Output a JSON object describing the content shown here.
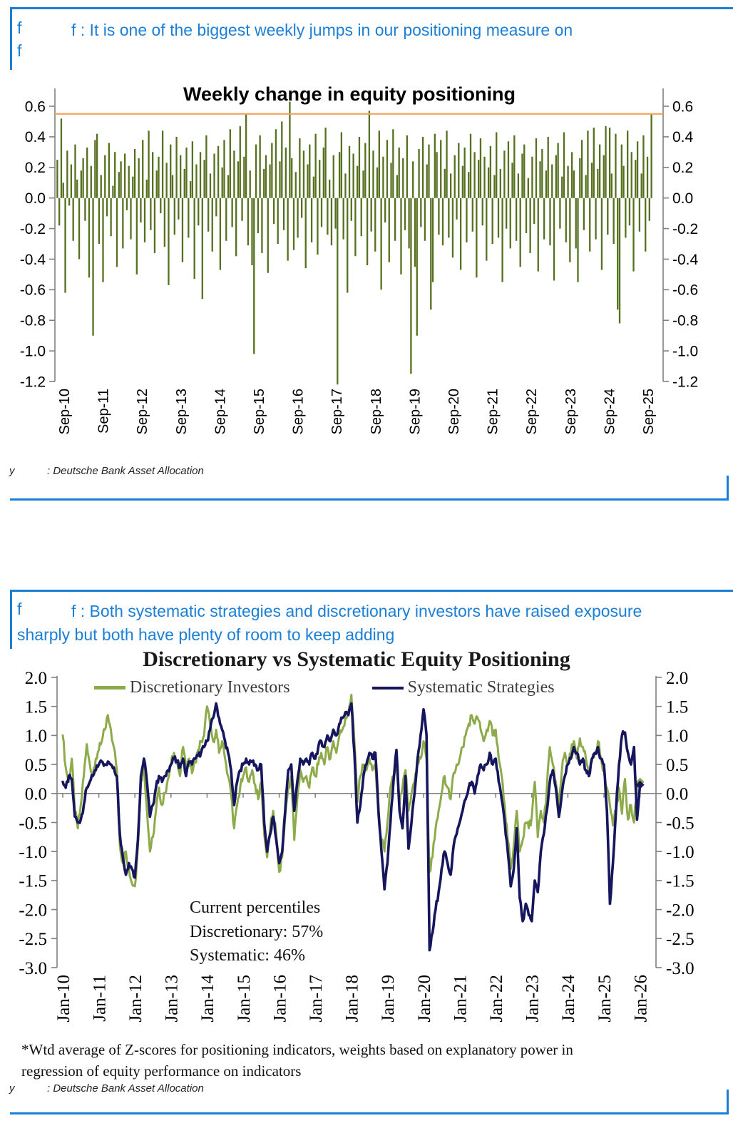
{
  "colors": {
    "accent_blue": "#1b7fd6",
    "bar_olive": "#55701f",
    "discretionary_green": "#8dab4a",
    "systematic_navy": "#16165e",
    "reference_orange": "#f2a45c",
    "axis_grey": "#808080"
  },
  "panel1": {
    "marker1": "f",
    "marker2": "f",
    "headline": "f : It is one of the biggest weekly jumps in our positioning measure on",
    "source_marker": "y",
    "source_text": ": Deutsche Bank Asset Allocation"
  },
  "panel2": {
    "marker": "f",
    "headline": "f : Both systematic strategies and discretionary investors have raised exposure sharply but both have plenty of room to keep adding",
    "footnote_line1": "*Wtd average of Z-scores for positioning indicators, weights based on explanatory power in",
    "footnote_line2": "regression of equity performance on indicators",
    "source_marker": "y",
    "source_text": ": Deutsche Bank Asset Allocation"
  },
  "chart_data": [
    {
      "type": "bar",
      "title": "Weekly change in equity positioning",
      "xlabel": "",
      "ylabel": "",
      "ylim": [
        -1.2,
        0.65
      ],
      "y_ticks": [
        "0.6",
        "0.4",
        "0.2",
        "0.0",
        "-0.2",
        "-0.4",
        "-0.6",
        "-0.8",
        "-1.0",
        "-1.2"
      ],
      "x_labels": [
        "Sep-10",
        "Sep-11",
        "Sep-12",
        "Sep-13",
        "Sep-14",
        "Sep-15",
        "Sep-16",
        "Sep-17",
        "Sep-18",
        "Sep-19",
        "Sep-20",
        "Sep-21",
        "Sep-22",
        "Sep-23",
        "Sep-24",
        "Sep-25"
      ],
      "grid": false,
      "bar_color": "#55701f",
      "reference_line": {
        "value": 0.55,
        "color": "#f2a45c",
        "note": "latest weekly change marker"
      },
      "values": [
        0.25,
        -0.18,
        0.52,
        0.1,
        -0.62,
        0.31,
        -0.05,
        0.22,
        -0.28,
        0.35,
        0.12,
        -0.4,
        0.18,
        0.26,
        -0.15,
        0.33,
        -0.52,
        0.21,
        -0.9,
        0.38,
        0.42,
        -0.3,
        0.15,
        -0.55,
        0.28,
        -0.12,
        0.36,
        -0.25,
        0.08,
        0.3,
        -0.45,
        0.17,
        0.24,
        -0.33,
        0.29,
        -0.08,
        0.21,
        -0.27,
        0.14,
        0.32,
        -0.5,
        0.26,
        -0.16,
        0.38,
        -0.29,
        0.12,
        0.44,
        -0.21,
        0.3,
        -0.36,
        0.18,
        0.27,
        -0.1,
        0.44,
        -0.32,
        0.23,
        -0.57,
        0.35,
        0.15,
        -0.24,
        0.4,
        -0.14,
        0.28,
        -0.42,
        0.19,
        0.33,
        -0.26,
        0.11,
        0.37,
        -0.53,
        0.22,
        -0.18,
        0.3,
        -0.66,
        0.25,
        0.41,
        -0.22,
        0.16,
        -0.35,
        0.29,
        -0.12,
        0.34,
        -0.47,
        0.2,
        0.38,
        -0.28,
        0.15,
        0.45,
        -0.19,
        0.31,
        -0.38,
        0.24,
        0.47,
        -0.15,
        0.27,
        0.55,
        -0.31,
        0.18,
        -0.44,
        -1.02,
        0.35,
        -0.23,
        0.41,
        -0.36,
        0.19,
        0.28,
        -0.49,
        0.22,
        0.36,
        -0.17,
        0.45,
        -0.3,
        0.24,
        0.5,
        -0.21,
        0.33,
        -0.41,
        0.63,
        0.26,
        -0.34,
        0.17,
        -0.26,
        0.39,
        -0.13,
        0.31,
        -0.46,
        0.22,
        0.35,
        -0.29,
        0.14,
        0.42,
        -0.37,
        0.25,
        -0.19,
        0.33,
        0.46,
        -0.24,
        0.12,
        -0.31,
        0.28,
        -0.2,
        -1.22,
        0.3,
        0.43,
        -0.27,
        0.16,
        -0.62,
        0.34,
        -0.15,
        0.29,
        -0.38,
        0.21,
        0.4,
        -0.25,
        0.18,
        0.36,
        -0.44,
        0.57,
        -0.22,
        0.31,
        -0.35,
        0.2,
        0.44,
        -0.6,
        0.27,
        -0.16,
        0.38,
        -0.42,
        0.23,
        0.45,
        -0.28,
        0.15,
        0.33,
        -0.5,
        0.26,
        -0.21,
        0.41,
        -0.33,
        -1.15,
        0.24,
        -0.45,
        -0.9,
        0.32,
        -0.19,
        0.4,
        -0.28,
        0.22,
        0.35,
        -0.73,
        -0.55,
        0.42,
        0.3,
        -0.24,
        0.38,
        -0.31,
        0.19,
        0.44,
        -0.26,
        0.16,
        -0.39,
        0.28,
        -0.14,
        0.36,
        -0.47,
        0.21,
        0.33,
        -0.29,
        0.17,
        0.42,
        -0.22,
        0.3,
        -0.52,
        0.25,
        0.39,
        -0.18,
        0.27,
        -0.41,
        0.2,
        0.34,
        -0.3,
        0.15,
        0.43,
        -0.26,
        0.19,
        -0.55,
        0.31,
        -0.2,
        0.37,
        -0.33,
        0.23,
        0.41,
        -0.28,
        0.16,
        -0.45,
        0.29,
        0.35,
        -0.23,
        0.13,
        -0.36,
        0.27,
        -0.17,
        0.39,
        -0.48,
        0.24,
        0.32,
        -0.27,
        0.18,
        0.4,
        -0.31,
        0.22,
        -0.54,
        0.28,
        0.36,
        -0.2,
        0.14,
        0.43,
        -0.29,
        0.21,
        -0.42,
        0.3,
        0.18,
        -0.33,
        -0.55,
        0.26,
        0.38,
        -0.21,
        0.15,
        0.44,
        -0.35,
        0.23,
        0.46,
        -0.27,
        0.19,
        0.35,
        -0.47,
        0.28,
        0.47,
        -0.24,
        0.46,
        0.16,
        -0.3,
        0.42,
        -0.73,
        -0.82,
        0.35,
        0.21,
        -0.26,
        0.44,
        -0.18,
        0.3,
        -0.48,
        0.25,
        0.37,
        -0.22,
        0.16,
        0.41,
        -0.35,
        0.27,
        -0.15,
        0.55
      ]
    },
    {
      "type": "line",
      "title": "Discretionary  vs Systematic Equity Positioning",
      "xlabel": "",
      "ylabel": "",
      "ylim": [
        -3.0,
        2.0
      ],
      "y_ticks": [
        "2.0",
        "1.5",
        "1.0",
        "0.5",
        "0.0",
        "-0.5",
        "-1.0",
        "-1.5",
        "-2.0",
        "-2.5",
        "-3.0"
      ],
      "x_labels": [
        "Jan-10",
        "Jan-11",
        "Jan-12",
        "Jan-13",
        "Jan-14",
        "Jan-15",
        "Jan-16",
        "Jan-17",
        "Jan-18",
        "Jan-19",
        "Jan-20",
        "Jan-21",
        "Jan-22",
        "Jan-23",
        "Jan-24",
        "Jan-25",
        "Jan-26"
      ],
      "grid": false,
      "legend_position": "top",
      "annotation": {
        "lines": [
          "Current percentiles",
          "Discretionary: 57%",
          "Systematic: 46%"
        ]
      },
      "x_frequency": "monthly from Jan-2010 to Jan-2026",
      "series": [
        {
          "name": "Discretionary Investors",
          "color": "#8dab4a",
          "values": [
            1.0,
            0.45,
            0.2,
            0.6,
            -0.3,
            -0.6,
            -0.2,
            0.3,
            0.85,
            0.5,
            0.3,
            0.6,
            0.75,
            0.9,
            1.1,
            1.35,
            1.1,
            0.8,
            0.4,
            -0.9,
            -1.2,
            -1.0,
            -1.3,
            -1.55,
            -1.6,
            -0.9,
            0.2,
            0.5,
            -0.3,
            -1.0,
            -0.75,
            -0.3,
            0.1,
            -0.2,
            0.0,
            0.25,
            0.5,
            0.7,
            0.55,
            0.3,
            0.8,
            0.4,
            0.6,
            0.35,
            0.55,
            0.75,
            0.9,
            1.0,
            1.5,
            1.2,
            0.9,
            1.1,
            0.7,
            0.9,
            0.6,
            0.3,
            0.0,
            -0.6,
            -0.2,
            0.1,
            0.3,
            0.45,
            0.2,
            0.4,
            0.15,
            -0.1,
            0.2,
            -0.7,
            -1.1,
            -0.6,
            -0.3,
            -0.7,
            -1.35,
            -1.1,
            -0.4,
            0.1,
            0.3,
            -0.8,
            -0.1,
            0.4,
            0.2,
            0.3,
            0.1,
            0.45,
            0.3,
            0.5,
            0.7,
            0.5,
            0.8,
            0.6,
            0.9,
            0.7,
            1.0,
            1.1,
            1.3,
            1.4,
            1.7,
            0.9,
            -0.15,
            0.3,
            0.5,
            0.4,
            0.6,
            0.4,
            0.5,
            -0.4,
            -0.8,
            -1.0,
            -0.5,
            0.1,
            0.3,
            0.5,
            -0.2,
            0.1,
            0.4,
            -0.3,
            0.0,
            0.2,
            0.5,
            0.6,
            0.9,
            0.6,
            -1.35,
            -1.1,
            -0.6,
            -0.3,
            0.0,
            0.3,
            0.1,
            -0.1,
            0.35,
            0.5,
            0.6,
            0.8,
            1.0,
            1.2,
            1.35,
            1.2,
            1.3,
            1.1,
            0.9,
            1.1,
            1.25,
            1.0,
            1.1,
            0.6,
            0.3,
            -0.2,
            -0.8,
            -1.3,
            -0.9,
            -0.3,
            -1.0,
            -0.8,
            -0.5,
            -0.6,
            -0.4,
            0.2,
            -0.75,
            -0.3,
            -0.5,
            0.1,
            0.8,
            0.5,
            0.2,
            -0.3,
            0.4,
            0.7,
            0.5,
            0.7,
            0.9,
            0.6,
            0.95,
            0.8,
            0.6,
            0.3,
            0.55,
            0.7,
            0.9,
            0.6,
            0.4,
            0.1,
            -0.2,
            -0.55,
            -0.3,
            0.1,
            -0.35,
            0.25,
            -0.45,
            -0.2,
            -0.5,
            0.1,
            0.2
          ]
        },
        {
          "name": "Systematic Strategies",
          "color": "#16165e",
          "values": [
            0.2,
            0.1,
            0.3,
            0.25,
            -0.4,
            -0.5,
            -0.45,
            -0.2,
            0.1,
            0.2,
            0.3,
            0.4,
            0.5,
            0.55,
            0.5,
            0.55,
            0.5,
            0.45,
            0.3,
            -0.7,
            -1.1,
            -1.4,
            -1.2,
            -1.3,
            -1.45,
            -0.8,
            0.3,
            0.6,
            0.2,
            -0.4,
            -0.2,
            0.1,
            0.3,
            0.2,
            0.3,
            0.4,
            0.5,
            0.6,
            0.55,
            0.45,
            0.6,
            0.3,
            0.55,
            0.5,
            0.6,
            0.65,
            0.7,
            0.8,
            0.9,
            1.1,
            1.3,
            1.55,
            1.3,
            1.1,
            0.9,
            0.7,
            0.4,
            -0.2,
            0.2,
            0.4,
            0.5,
            0.6,
            0.5,
            0.55,
            0.5,
            0.4,
            0.5,
            -0.5,
            -1.0,
            -0.7,
            -0.4,
            -0.8,
            -1.2,
            -1.0,
            -0.3,
            0.4,
            0.5,
            -0.3,
            0.2,
            0.6,
            0.5,
            0.6,
            0.5,
            0.7,
            0.6,
            0.8,
            0.9,
            0.8,
            1.0,
            0.9,
            1.1,
            1.0,
            1.2,
            1.3,
            1.4,
            1.35,
            1.55,
            0.7,
            -0.5,
            -0.2,
            0.3,
            0.5,
            0.7,
            0.6,
            0.7,
            -0.3,
            -1.0,
            -1.65,
            -1.2,
            -0.5,
            0.2,
            0.75,
            -0.3,
            -0.6,
            0.3,
            -0.95,
            -0.5,
            0.0,
            0.6,
            1.0,
            1.45,
            1.0,
            -2.7,
            -2.4,
            -2.0,
            -1.7,
            -1.3,
            -1.0,
            -1.2,
            -1.4,
            -0.9,
            -0.7,
            -0.5,
            -0.3,
            -0.1,
            0.1,
            0.2,
            0.0,
            0.3,
            0.5,
            0.4,
            0.5,
            0.7,
            0.5,
            0.6,
            0.2,
            -0.1,
            -0.5,
            -1.0,
            -1.6,
            -1.3,
            -0.6,
            -1.8,
            -2.2,
            -1.9,
            -2.1,
            -2.2,
            -1.5,
            -1.7,
            -1.0,
            -0.7,
            -0.3,
            0.2,
            0.4,
            0.1,
            -0.4,
            0.0,
            0.3,
            0.5,
            0.6,
            0.8,
            0.7,
            0.5,
            0.6,
            0.4,
            0.3,
            0.6,
            0.7,
            0.8,
            0.6,
            0.5,
            -0.3,
            -1.9,
            -1.2,
            -0.3,
            0.5,
            1.0,
            1.05,
            0.7,
            0.5,
            0.8,
            -0.45,
            0.15
          ]
        }
      ]
    }
  ]
}
